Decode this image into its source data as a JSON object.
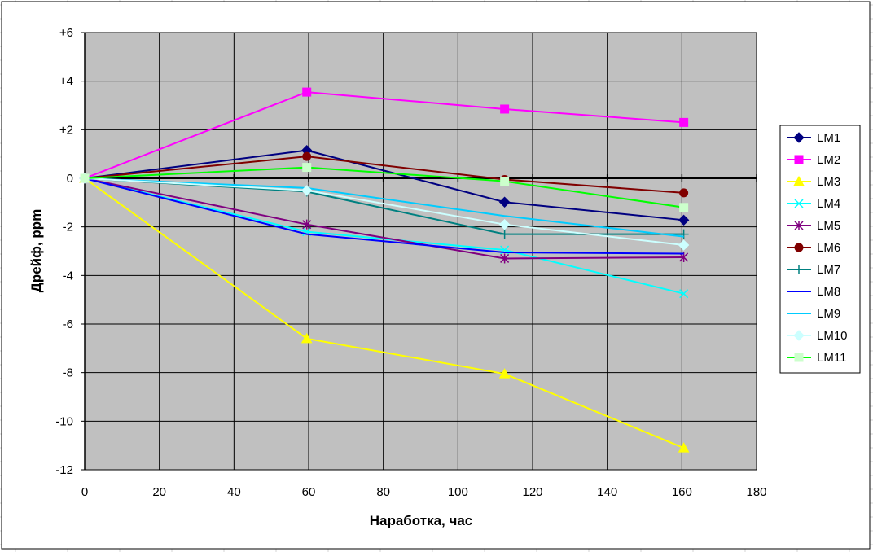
{
  "chart_data": {
    "type": "line",
    "title": "",
    "xlabel": "Наработка, час",
    "ylabel": "Дрейф, ppm",
    "xlim": [
      0,
      180
    ],
    "ylim": [
      -12,
      6
    ],
    "x_ticks": [
      0,
      20,
      40,
      60,
      80,
      100,
      120,
      140,
      160,
      180
    ],
    "x_tick_labels": [
      "0",
      "20",
      "40",
      "60",
      "80",
      "100",
      "120",
      "140",
      "160",
      "180"
    ],
    "y_ticks": [
      6,
      4,
      2,
      0,
      -2,
      -4,
      -6,
      -8,
      -10,
      -12
    ],
    "y_tick_labels": [
      "+6",
      "+4",
      "+2",
      "0",
      "-2",
      "-4",
      "-6",
      "-8",
      "-10",
      "-12"
    ],
    "grid": true,
    "plot_background": "#c0c0c0",
    "legend_position": "right",
    "series": [
      {
        "name": "LM1",
        "color": "#000080",
        "marker": "diamond",
        "x": [
          0,
          59.5,
          112.5,
          160.5
        ],
        "y": [
          0,
          1.15,
          -0.98,
          -1.72
        ]
      },
      {
        "name": "LM2",
        "color": "#ff00ff",
        "marker": "square",
        "x": [
          0,
          59.5,
          112.5,
          160.5
        ],
        "y": [
          0,
          3.55,
          2.85,
          2.3
        ]
      },
      {
        "name": "LM3",
        "color": "#ffff00",
        "marker": "triangle",
        "x": [
          0,
          59.5,
          112.5,
          160.5
        ],
        "y": [
          0,
          -6.6,
          -8.05,
          -11.1
        ]
      },
      {
        "name": "LM4",
        "color": "#00ffff",
        "marker": "x",
        "x": [
          0,
          59.5,
          112.5,
          160.5
        ],
        "y": [
          0,
          -2.2,
          -2.95,
          -4.75
        ]
      },
      {
        "name": "LM5",
        "color": "#800080",
        "marker": "asterisk",
        "x": [
          0,
          59.5,
          112.5,
          160.5
        ],
        "y": [
          0,
          -1.9,
          -3.3,
          -3.25
        ]
      },
      {
        "name": "LM6",
        "color": "#800000",
        "marker": "circle",
        "x": [
          0,
          59.5,
          112.5,
          160.5
        ],
        "y": [
          0,
          0.9,
          -0.05,
          -0.6
        ]
      },
      {
        "name": "LM7",
        "color": "#008080",
        "marker": "plus",
        "x": [
          0,
          59.5,
          112.5,
          160.5
        ],
        "y": [
          0,
          -0.55,
          -2.3,
          -2.3
        ]
      },
      {
        "name": "LM8",
        "color": "#0000ff",
        "marker": "none",
        "x": [
          0,
          59.5,
          112.5,
          160.5
        ],
        "y": [
          0,
          -2.3,
          -3.05,
          -3.1
        ]
      },
      {
        "name": "LM9",
        "color": "#00ccff",
        "marker": "none",
        "x": [
          0,
          59.5,
          112.5,
          160.5
        ],
        "y": [
          0,
          -0.4,
          -1.55,
          -2.4
        ]
      },
      {
        "name": "LM10",
        "color": "#ccffff",
        "marker": "diamond",
        "x": [
          0,
          59.5,
          112.5,
          160.5
        ],
        "y": [
          0,
          -0.5,
          -1.9,
          -2.75
        ]
      },
      {
        "name": "LM11",
        "color": "#00ff00",
        "marker": "square",
        "x": [
          0,
          59.5,
          112.5,
          160.5
        ],
        "y": [
          0,
          0.45,
          -0.12,
          -1.2
        ],
        "marker_color": "#ccffcc"
      }
    ]
  }
}
